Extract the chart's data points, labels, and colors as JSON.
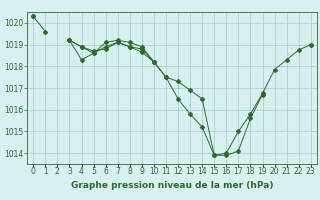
{
  "title": "Graphe pression niveau de la mer (hPa)",
  "xlabel_hours": [
    0,
    1,
    2,
    3,
    4,
    5,
    6,
    7,
    8,
    9,
    10,
    11,
    12,
    13,
    14,
    15,
    16,
    17,
    18,
    19,
    20,
    21,
    22,
    23
  ],
  "line1": [
    1020.3,
    1019.6,
    null,
    1019.2,
    1018.9,
    1018.6,
    1018.9,
    1019.1,
    1018.9,
    1018.8,
    1018.2,
    1017.5,
    1017.3,
    1016.9,
    1016.5,
    1013.9,
    1013.9,
    1014.1,
    1015.6,
    1016.7,
    null,
    null,
    null,
    null
  ],
  "line2": [
    1020.3,
    null,
    null,
    1019.2,
    1018.3,
    1018.6,
    1019.1,
    1019.2,
    1019.1,
    1018.9,
    1018.2,
    null,
    null,
    null,
    null,
    null,
    null,
    null,
    null,
    null,
    null,
    null,
    null,
    1019.0
  ],
  "line3": [
    null,
    null,
    null,
    1019.2,
    1018.9,
    1018.7,
    1018.8,
    1019.1,
    1018.9,
    1018.65,
    1018.2,
    1017.5,
    1016.5,
    1015.8,
    1015.2,
    1013.9,
    1014.0,
    1015.0,
    1015.8,
    1016.75,
    1017.85,
    1018.3,
    1018.75,
    1019.0
  ],
  "ylim": [
    1013.5,
    1020.5
  ],
  "yticks": [
    1014,
    1015,
    1016,
    1017,
    1018,
    1019,
    1020
  ],
  "line_color": "#2d6a2d",
  "bg_color": "#d8f0f0",
  "grid_color": "#a0c8c8",
  "title_fontsize": 6.5,
  "tick_fontsize": 5.5
}
